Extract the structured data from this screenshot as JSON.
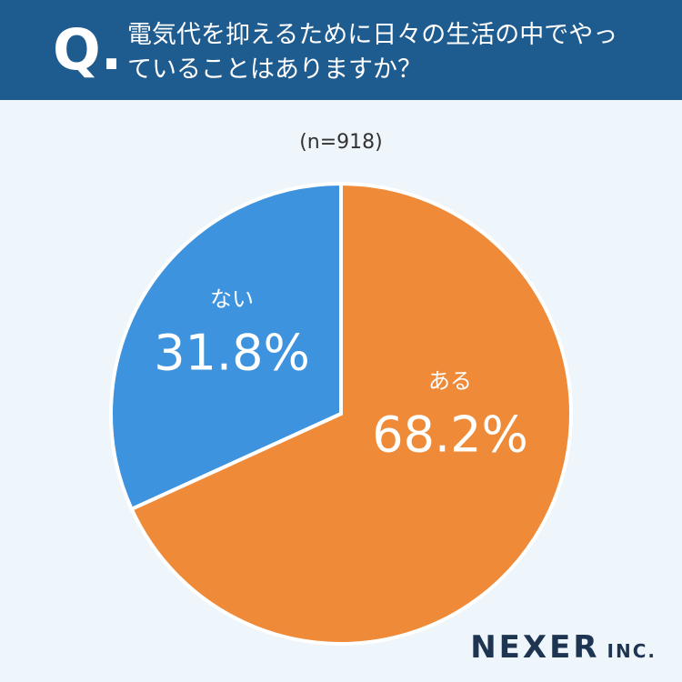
{
  "header": {
    "label": "Q.",
    "title": "電気代を抑えるために日々の生活の中でやっていることはありますか？"
  },
  "chart_data": {
    "type": "pie",
    "subtitle": "(n=918)",
    "categories": [
      "ある",
      "ない"
    ],
    "values": [
      68.2,
      31.8
    ],
    "value_labels": [
      "68.2%",
      "31.8%"
    ],
    "colors": [
      "#ef8a38",
      "#3d93de"
    ]
  },
  "logo": {
    "name": "NEXER",
    "suffix": "INC."
  }
}
